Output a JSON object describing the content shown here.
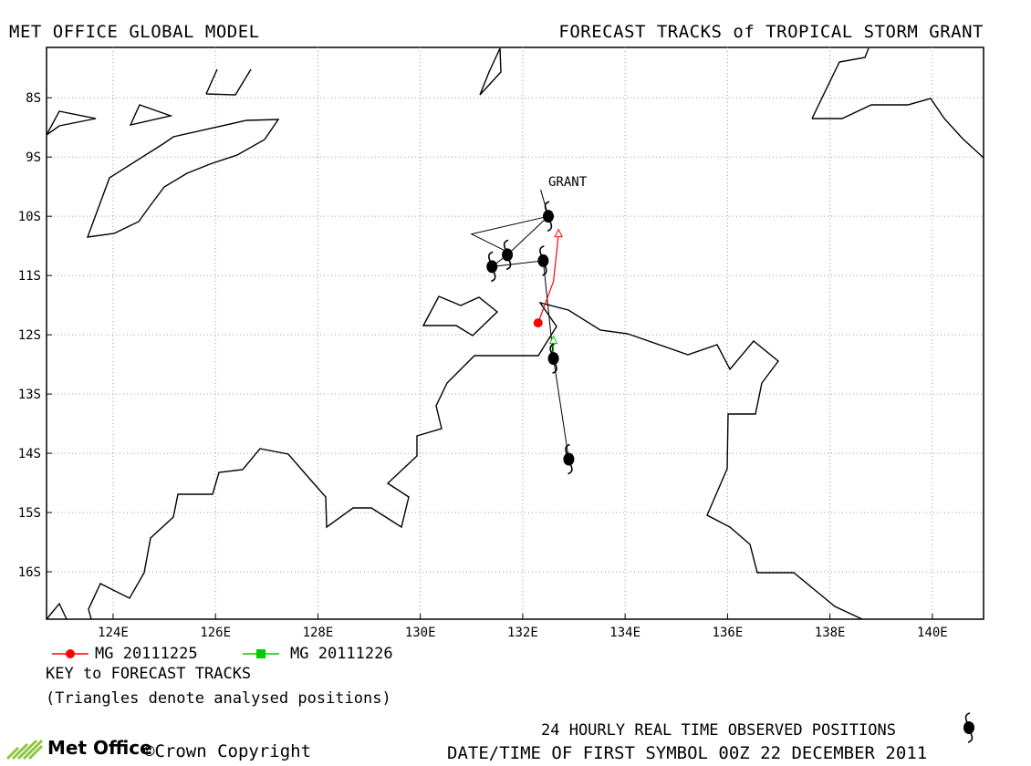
{
  "header": {
    "left": "MET OFFICE GLOBAL MODEL",
    "right": "FORECAST TRACKS of TROPICAL STORM GRANT"
  },
  "map": {
    "storm_label": "GRANT",
    "lat_labels": [
      "8S",
      "9S",
      "10S",
      "11S",
      "12S",
      "13S",
      "14S",
      "15S",
      "16S"
    ],
    "lon_labels": [
      "124E",
      "126E",
      "128E",
      "130E",
      "132E",
      "134E",
      "136E",
      "138E",
      "140E"
    ],
    "lon_range": [
      122.7,
      141.0
    ],
    "lat_range": [
      -16.8,
      -7.15
    ],
    "grid": "dotted",
    "observed_positions": [
      {
        "lon": 132.9,
        "lat": -14.1
      },
      {
        "lon": 132.6,
        "lat": -12.4
      },
      {
        "lon": 132.4,
        "lat": -10.75
      },
      {
        "lon": 131.4,
        "lat": -10.85
      },
      {
        "lon": 131.7,
        "lat": -10.65
      },
      {
        "lon": 132.5,
        "lat": -10.0
      }
    ],
    "forecast_tracks": [
      {
        "name": "MG 20111225",
        "color": "#ff0000",
        "points": [
          {
            "lon": 132.3,
            "lat": -11.8
          },
          {
            "lon": 132.6,
            "lat": -11.1
          },
          {
            "lon": 132.7,
            "lat": -10.3
          }
        ]
      },
      {
        "name": "MG 20111226",
        "color": "#00cc00",
        "points": [
          {
            "lon": 132.6,
            "lat": -12.1
          },
          {
            "lon": 132.6,
            "lat": -12.3
          }
        ]
      }
    ]
  },
  "legend": {
    "series": [
      {
        "label": "MG 20111225",
        "color": "#ff0000",
        "marker": "circle"
      },
      {
        "label": "MG 20111226",
        "color": "#00cc00",
        "marker": "square"
      }
    ],
    "key_title": "KEY to FORECAST TRACKS",
    "key_note": "(Triangles denote analysed positions)"
  },
  "footer": {
    "observed_note": "24 HOURLY REAL TIME OBSERVED POSITIONS",
    "datetime_note": "DATE/TIME OF FIRST SYMBOL 00Z 22 DECEMBER 2011",
    "logo_text": "Met Office",
    "copyright": "©Crown Copyright"
  }
}
